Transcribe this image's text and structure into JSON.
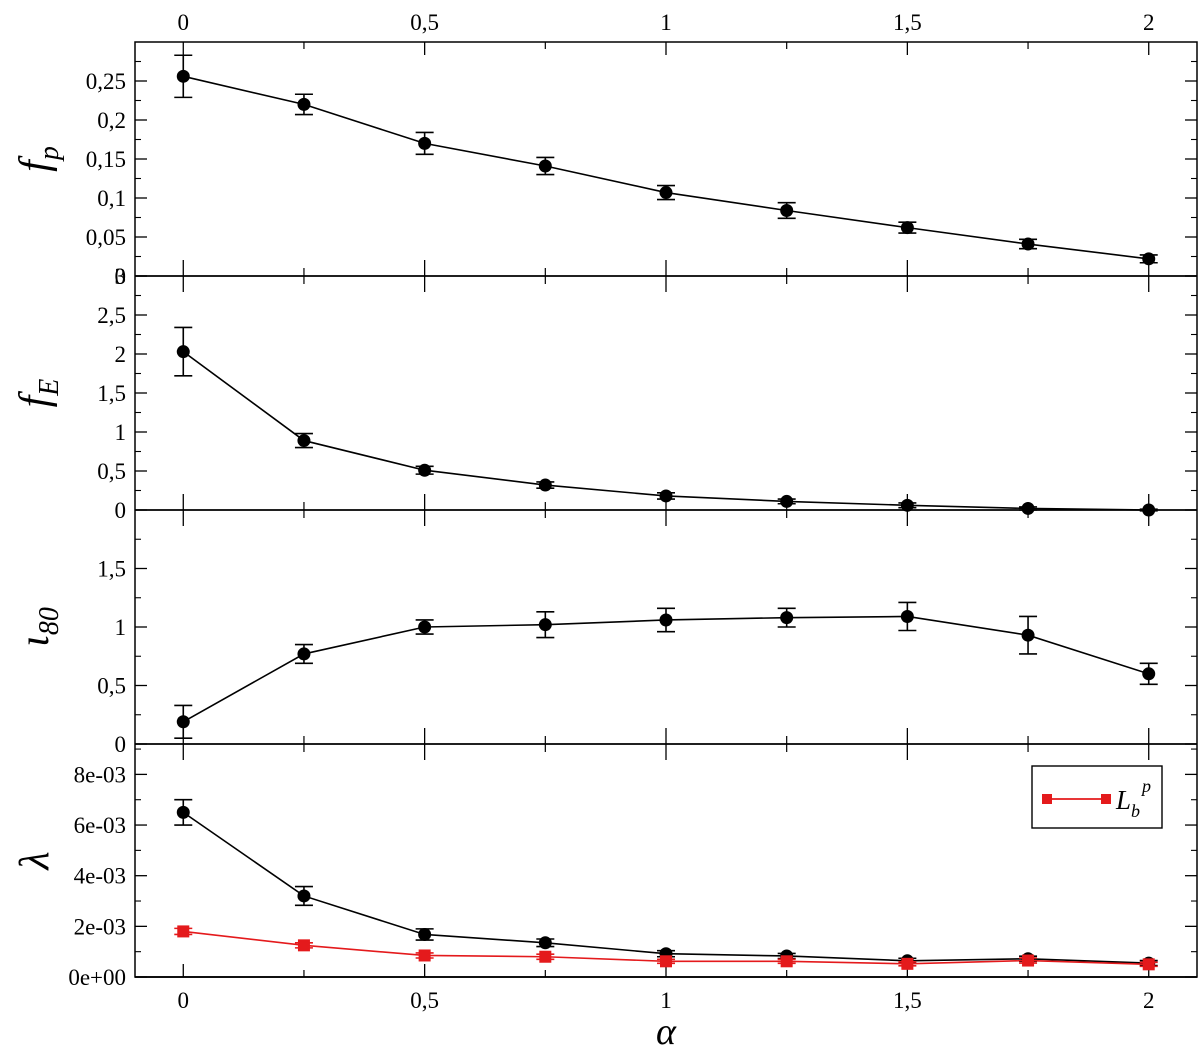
{
  "chart_data": {
    "type": "line",
    "x": [
      0,
      0.25,
      0.5,
      0.75,
      1,
      1.25,
      1.5,
      1.75,
      2
    ],
    "xlabel": "α",
    "xlim": [
      -0.1,
      2.1
    ],
    "x_tick_values": [
      0,
      0.5,
      1,
      1.5,
      2
    ],
    "x_tick_labels": [
      "0",
      "0,5",
      "1",
      "1,5",
      "2"
    ],
    "top_axis_tick_labels": [
      "0",
      "0,5",
      "1",
      "1,5",
      "2"
    ],
    "grid": false,
    "panels": [
      {
        "ylabel": "f",
        "ylabel_sub": "p",
        "ylim": [
          0,
          0.3
        ],
        "y_tick_values": [
          0,
          0.05,
          0.1,
          0.15,
          0.2,
          0.25
        ],
        "y_tick_labels": [
          "0",
          "0,05",
          "0,1",
          "0,15",
          "0,2",
          "0,25"
        ],
        "series": [
          {
            "color": "#000000",
            "marker": "circle",
            "y": [
              0.256,
              0.22,
              0.17,
              0.141,
              0.107,
              0.084,
              0.062,
              0.041,
              0.022
            ],
            "err": [
              0.027,
              0.013,
              0.014,
              0.011,
              0.009,
              0.01,
              0.007,
              0.006,
              0.005
            ]
          }
        ]
      },
      {
        "ylabel": "f",
        "ylabel_sub": "E",
        "ylim": [
          0,
          3
        ],
        "y_tick_values": [
          0,
          0.5,
          1,
          1.5,
          2,
          2.5,
          3
        ],
        "y_tick_labels": [
          "0",
          "0,5",
          "1",
          "1,5",
          "2",
          "2,5",
          "3"
        ],
        "series": [
          {
            "color": "#000000",
            "marker": "circle",
            "y": [
              2.03,
              0.89,
              0.51,
              0.32,
              0.18,
              0.11,
              0.06,
              0.02,
              0.0
            ],
            "err": [
              0.31,
              0.09,
              0.05,
              0.04,
              0.04,
              0.03,
              0.03,
              0.02,
              0.01
            ]
          }
        ]
      },
      {
        "ylabel": "ι",
        "ylabel_sub": "80",
        "ylim": [
          0,
          2
        ],
        "y_tick_values": [
          0,
          0.5,
          1,
          1.5
        ],
        "y_tick_labels": [
          "0",
          "0,5",
          "1",
          "1,5"
        ],
        "series": [
          {
            "color": "#000000",
            "marker": "circle",
            "y": [
              0.19,
              0.77,
              1.0,
              1.02,
              1.06,
              1.08,
              1.09,
              0.93,
              0.6
            ],
            "err": [
              0.14,
              0.08,
              0.06,
              0.11,
              0.1,
              0.08,
              0.12,
              0.16,
              0.09
            ]
          }
        ]
      },
      {
        "ylabel": "λ",
        "ylim": [
          0,
          0.0092
        ],
        "y_tick_values": [
          0,
          0.002,
          0.004,
          0.006,
          0.008
        ],
        "y_tick_labels": [
          "0e+00",
          "2e-03",
          "4e-03",
          "6e-03",
          "8e-03"
        ],
        "legend_position": "top-right",
        "series": [
          {
            "color": "#000000",
            "marker": "circle",
            "y": [
              0.0065,
              0.0032,
              0.00168,
              0.00135,
              0.00092,
              0.00083,
              0.00064,
              0.00072,
              0.00055
            ],
            "err": [
              0.0005,
              0.00037,
              0.00022,
              0.00015,
              0.00012,
              0.0001,
              0.0001,
              0.0001,
              0.0001
            ]
          },
          {
            "name": "L_b^p",
            "name_base": "L",
            "name_sub": "b",
            "name_sup": "p",
            "color": "#e41a1c",
            "marker": "square",
            "y": [
              0.0018,
              0.00125,
              0.00085,
              0.0008,
              0.00062,
              0.00062,
              0.00052,
              0.00065,
              0.0005
            ],
            "err": [
              0.00012,
              0.0001,
              0.0001,
              0.0001,
              8e-05,
              8e-05,
              8e-05,
              0.0001,
              8e-05
            ]
          }
        ]
      }
    ]
  }
}
